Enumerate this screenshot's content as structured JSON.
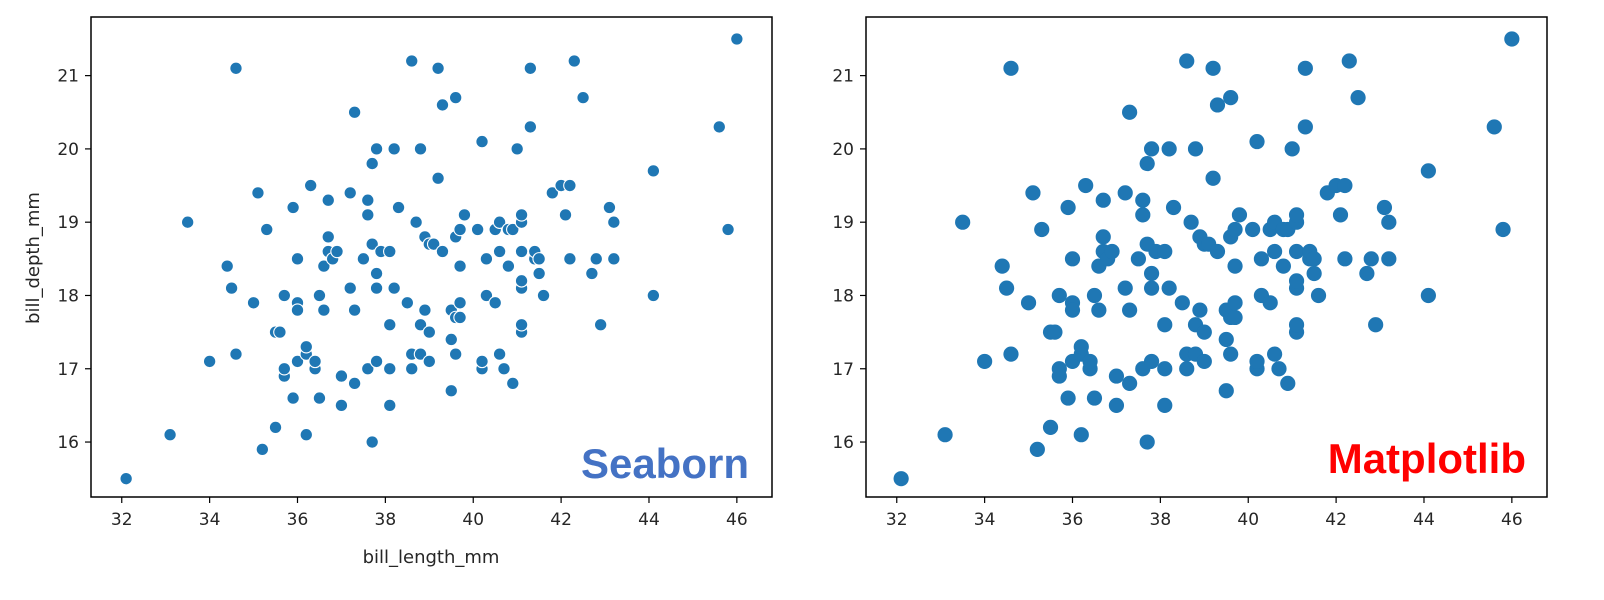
{
  "chart_data": [
    {
      "type": "scatter",
      "library_label": "Seaborn",
      "library_label_color": "#4472c4",
      "xlabel": "bill_length_mm",
      "ylabel": "bill_depth_mm",
      "xlim": [
        31.3,
        46.8
      ],
      "ylim": [
        15.25,
        21.8
      ],
      "x_ticks": [
        32,
        34,
        36,
        38,
        40,
        42,
        44,
        46
      ],
      "y_ticks": [
        16,
        17,
        18,
        19,
        20,
        21
      ],
      "marker_color": "#1f77b4",
      "marker_edge": "#ffffff",
      "grid": false
    },
    {
      "type": "scatter",
      "library_label": "Matplotlib",
      "library_label_color": "#ff0000",
      "xlabel": "",
      "ylabel": "",
      "xlim": [
        31.3,
        46.8
      ],
      "ylim": [
        15.25,
        21.8
      ],
      "x_ticks": [
        32,
        34,
        36,
        38,
        40,
        42,
        44,
        46
      ],
      "y_ticks": [
        16,
        17,
        18,
        19,
        20,
        21
      ],
      "marker_color": "#1f77b4",
      "marker_edge": "none",
      "grid": false
    }
  ],
  "points": [
    [
      32.1,
      15.5
    ],
    [
      33.1,
      16.1
    ],
    [
      33.5,
      19.0
    ],
    [
      34.0,
      17.1
    ],
    [
      34.4,
      18.4
    ],
    [
      34.5,
      18.1
    ],
    [
      34.6,
      21.1
    ],
    [
      34.6,
      17.2
    ],
    [
      35.0,
      17.9
    ],
    [
      35.1,
      19.4
    ],
    [
      35.2,
      15.9
    ],
    [
      35.3,
      18.9
    ],
    [
      35.5,
      17.5
    ],
    [
      35.5,
      16.2
    ],
    [
      35.6,
      17.5
    ],
    [
      35.7,
      16.9
    ],
    [
      35.7,
      17.0
    ],
    [
      35.7,
      18.0
    ],
    [
      35.9,
      16.6
    ],
    [
      35.9,
      19.2
    ],
    [
      36.0,
      17.1
    ],
    [
      36.0,
      17.9
    ],
    [
      36.0,
      18.5
    ],
    [
      36.0,
      17.8
    ],
    [
      36.2,
      16.1
    ],
    [
      36.2,
      17.2
    ],
    [
      36.2,
      17.3
    ],
    [
      36.3,
      19.5
    ],
    [
      36.4,
      17.0
    ],
    [
      36.4,
      17.1
    ],
    [
      36.5,
      16.6
    ],
    [
      36.5,
      18.0
    ],
    [
      36.6,
      17.8
    ],
    [
      36.6,
      18.4
    ],
    [
      36.7,
      18.6
    ],
    [
      36.7,
      19.3
    ],
    [
      36.7,
      18.8
    ],
    [
      36.8,
      18.5
    ],
    [
      36.9,
      18.6
    ],
    [
      37.0,
      16.5
    ],
    [
      37.0,
      16.9
    ],
    [
      37.2,
      18.1
    ],
    [
      37.2,
      19.4
    ],
    [
      37.3,
      20.5
    ],
    [
      37.3,
      16.8
    ],
    [
      37.3,
      17.8
    ],
    [
      37.5,
      18.5
    ],
    [
      37.6,
      17.0
    ],
    [
      37.6,
      19.3
    ],
    [
      37.6,
      19.1
    ],
    [
      37.7,
      19.8
    ],
    [
      37.7,
      18.7
    ],
    [
      37.7,
      16.0
    ],
    [
      37.8,
      17.1
    ],
    [
      37.8,
      18.1
    ],
    [
      37.8,
      18.3
    ],
    [
      37.8,
      20.0
    ],
    [
      37.9,
      18.6
    ],
    [
      38.1,
      16.5
    ],
    [
      38.1,
      17.0
    ],
    [
      38.1,
      18.6
    ],
    [
      38.1,
      17.6
    ],
    [
      38.2,
      18.1
    ],
    [
      38.2,
      20.0
    ],
    [
      38.3,
      19.2
    ],
    [
      38.5,
      17.9
    ],
    [
      38.6,
      17.0
    ],
    [
      38.6,
      17.2
    ],
    [
      38.6,
      21.2
    ],
    [
      38.7,
      19.0
    ],
    [
      38.8,
      17.2
    ],
    [
      38.8,
      20.0
    ],
    [
      38.8,
      17.6
    ],
    [
      38.9,
      17.8
    ],
    [
      38.9,
      18.8
    ],
    [
      39.0,
      17.1
    ],
    [
      39.0,
      17.5
    ],
    [
      39.0,
      18.7
    ],
    [
      39.1,
      18.7
    ],
    [
      39.2,
      19.6
    ],
    [
      39.2,
      21.1
    ],
    [
      39.3,
      20.6
    ],
    [
      39.3,
      18.6
    ],
    [
      39.5,
      16.7
    ],
    [
      39.5,
      17.8
    ],
    [
      39.5,
      17.4
    ],
    [
      39.6,
      17.7
    ],
    [
      39.6,
      18.8
    ],
    [
      39.6,
      20.7
    ],
    [
      39.6,
      17.2
    ],
    [
      39.7,
      18.9
    ],
    [
      39.7,
      17.7
    ],
    [
      39.7,
      17.9
    ],
    [
      39.7,
      18.4
    ],
    [
      39.8,
      19.1
    ],
    [
      40.1,
      18.9
    ],
    [
      40.2,
      17.0
    ],
    [
      40.2,
      17.1
    ],
    [
      40.2,
      20.1
    ],
    [
      40.3,
      18.0
    ],
    [
      40.3,
      18.5
    ],
    [
      40.5,
      17.9
    ],
    [
      40.5,
      18.9
    ],
    [
      40.6,
      17.2
    ],
    [
      40.6,
      18.6
    ],
    [
      40.6,
      19.0
    ],
    [
      40.7,
      17.0
    ],
    [
      40.8,
      18.4
    ],
    [
      40.8,
      18.9
    ],
    [
      40.9,
      16.8
    ],
    [
      40.9,
      18.9
    ],
    [
      41.0,
      20.0
    ],
    [
      41.1,
      17.5
    ],
    [
      41.1,
      17.6
    ],
    [
      41.1,
      18.1
    ],
    [
      41.1,
      18.2
    ],
    [
      41.1,
      19.0
    ],
    [
      41.1,
      18.6
    ],
    [
      41.1,
      19.1
    ],
    [
      41.3,
      21.1
    ],
    [
      41.3,
      20.3
    ],
    [
      41.4,
      18.5
    ],
    [
      41.4,
      18.6
    ],
    [
      41.5,
      18.3
    ],
    [
      41.5,
      18.5
    ],
    [
      41.6,
      18.0
    ],
    [
      41.8,
      19.4
    ],
    [
      42.0,
      19.5
    ],
    [
      42.1,
      19.1
    ],
    [
      42.2,
      19.5
    ],
    [
      42.2,
      18.5
    ],
    [
      42.3,
      21.2
    ],
    [
      42.5,
      20.7
    ],
    [
      42.7,
      18.3
    ],
    [
      42.8,
      18.5
    ],
    [
      42.9,
      17.6
    ],
    [
      43.1,
      19.2
    ],
    [
      43.2,
      18.5
    ],
    [
      43.2,
      19.0
    ],
    [
      44.1,
      19.7
    ],
    [
      44.1,
      18.0
    ],
    [
      45.6,
      20.3
    ],
    [
      45.8,
      18.9
    ],
    [
      46.0,
      21.5
    ]
  ]
}
